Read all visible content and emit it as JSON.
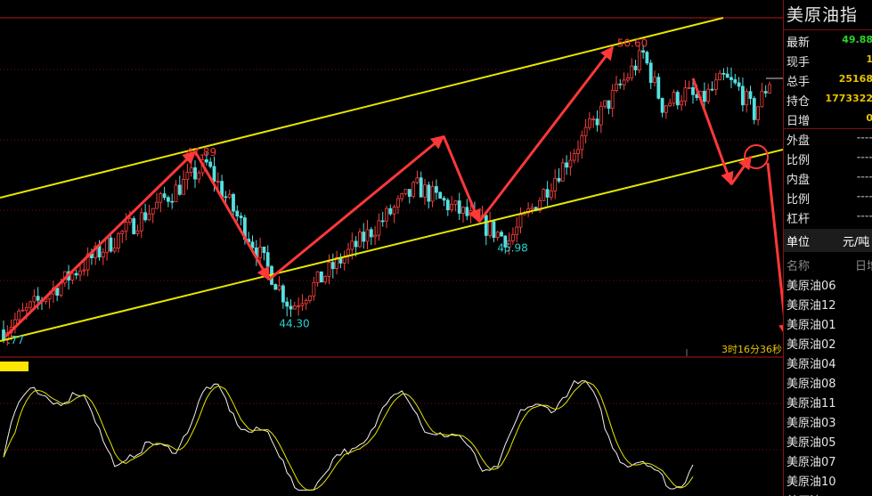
{
  "chart_data": {
    "type": "candlestick",
    "price_range": [
      43.2,
      51.4
    ],
    "annotations": [
      {
        "label": "47.89",
        "i": 53,
        "price": 47.89,
        "color": "#ff3a3a"
      },
      {
        "label": "50.60",
        "i": 167,
        "price": 50.6,
        "color": "#ff3a3a"
      },
      {
        "label": "44.30",
        "i": 75,
        "price": 44.3,
        "color": "#2ad0d0"
      },
      {
        "label": "45.98",
        "i": 132,
        "price": 45.98,
        "color": "#2ad0d0"
      },
      {
        "label": ".77",
        "i": 0,
        "price": 43.77,
        "color": "#2ad0d0"
      }
    ],
    "countdown": "3时16分36秒",
    "oscillator": {
      "range": [
        0,
        100
      ]
    }
  },
  "panel": {
    "title": "美原油指",
    "quote": [
      {
        "label": "最新",
        "value": "49.88",
        "color": "#2bd32b"
      },
      {
        "label": "现手",
        "value": "1",
        "color": "#e8c200"
      },
      {
        "label": "总手",
        "value": "25168",
        "color": "#e8c200"
      },
      {
        "label": "持仓",
        "value": "1773322",
        "color": "#e8c200"
      },
      {
        "label": "日增",
        "value": "0",
        "color": "#e8c200"
      },
      {
        "label": "外盘",
        "value": "----",
        "color": "#888"
      },
      {
        "label": "比例",
        "value": "----",
        "color": "#888"
      },
      {
        "label": "内盘",
        "value": "----",
        "color": "#888"
      },
      {
        "label": "比例",
        "value": "----",
        "color": "#888"
      },
      {
        "label": "杠杆",
        "value": "----",
        "color": "#888"
      }
    ],
    "unit_label": "单位",
    "unit_value": "元/吨",
    "list_header_name": "名称",
    "list_header_col": "日增",
    "list": [
      "美原油06",
      "美原油12",
      "美原油01",
      "美原油02",
      "美原油04",
      "美原油08",
      "美原油11",
      "美原油03",
      "美原油05",
      "美原油07",
      "美原油10",
      "美原油"
    ]
  }
}
